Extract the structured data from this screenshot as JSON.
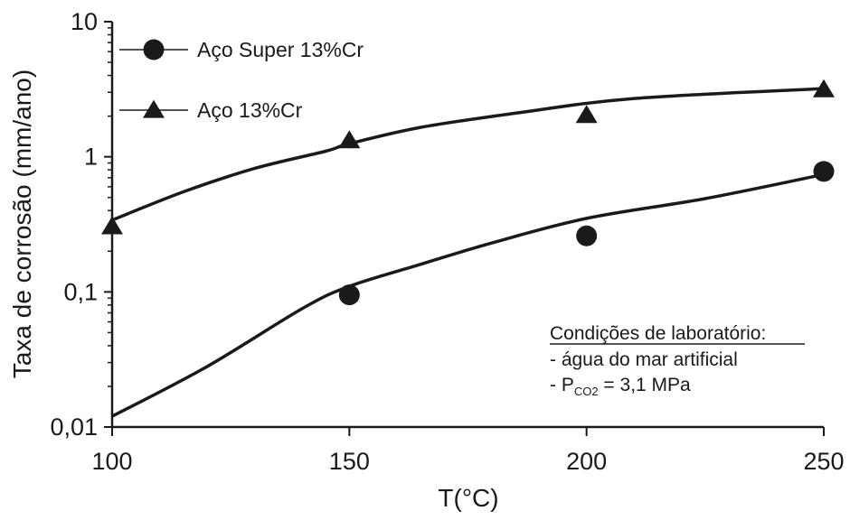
{
  "chart_data": {
    "type": "scatter",
    "xlabel": "T(°C)",
    "ylabel": "Taxa de corrosão (mm/ano)",
    "xlim": [
      100,
      250
    ],
    "ylim": [
      0.01,
      10
    ],
    "yscale": "log",
    "x_ticks": [
      100,
      150,
      200,
      250
    ],
    "x_tick_labels": [
      "100",
      "150",
      "200",
      "250"
    ],
    "y_ticks": [
      0.01,
      0.1,
      1,
      10
    ],
    "y_tick_labels": [
      "0,01",
      "0,1",
      "1",
      "10"
    ],
    "grid": false,
    "legend_position": "top-left",
    "series": [
      {
        "name": "Aço Super 13%Cr",
        "marker": "circle",
        "color": "#1a1a1a",
        "points": [
          {
            "x": 150,
            "y": 0.095
          },
          {
            "x": 200,
            "y": 0.26
          },
          {
            "x": 250,
            "y": 0.78
          }
        ],
        "fit_curve": [
          {
            "x": 100,
            "y": 0.012
          },
          {
            "x": 120,
            "y": 0.028
          },
          {
            "x": 140,
            "y": 0.075
          },
          {
            "x": 150,
            "y": 0.11
          },
          {
            "x": 165,
            "y": 0.16
          },
          {
            "x": 180,
            "y": 0.23
          },
          {
            "x": 200,
            "y": 0.35
          },
          {
            "x": 225,
            "y": 0.49
          },
          {
            "x": 250,
            "y": 0.74
          }
        ]
      },
      {
        "name": "Aço 13%Cr",
        "marker": "triangle",
        "color": "#1a1a1a",
        "points": [
          {
            "x": 100,
            "y": 0.3
          },
          {
            "x": 150,
            "y": 1.3
          },
          {
            "x": 200,
            "y": 2.0
          },
          {
            "x": 250,
            "y": 3.1
          }
        ],
        "fit_curve": [
          {
            "x": 100,
            "y": 0.34
          },
          {
            "x": 115,
            "y": 0.55
          },
          {
            "x": 130,
            "y": 0.82
          },
          {
            "x": 145,
            "y": 1.1
          },
          {
            "x": 150,
            "y": 1.25
          },
          {
            "x": 165,
            "y": 1.65
          },
          {
            "x": 185,
            "y": 2.1
          },
          {
            "x": 210,
            "y": 2.7
          },
          {
            "x": 250,
            "y": 3.2
          }
        ]
      }
    ],
    "annotation": {
      "heading": "Condições de laboratório:",
      "line1": "- água do mar artificial",
      "line2_prefix": "- P",
      "line2_subscript": "CO2",
      "line2_suffix": " = 3,1 MPa"
    }
  }
}
